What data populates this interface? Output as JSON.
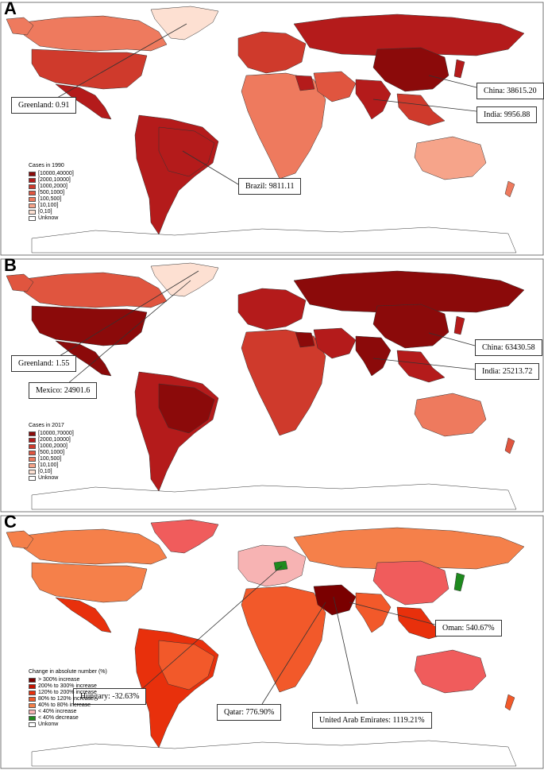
{
  "panels": [
    {
      "letter": "A",
      "legend": {
        "title": "Cases in 1990",
        "items": [
          {
            "label": "[10000,40000]",
            "color": "#8b0a0a"
          },
          {
            "label": "[2000,10000]",
            "color": "#b41b1b"
          },
          {
            "label": "[1000,2000]",
            "color": "#cf3a2c"
          },
          {
            "label": "[500,1000]",
            "color": "#e0553f"
          },
          {
            "label": "[100,500]",
            "color": "#ee7a5e"
          },
          {
            "label": "[10,100]",
            "color": "#f6a48a"
          },
          {
            "label": "[0,10]",
            "color": "#fde0d2"
          },
          {
            "label": "Unknow",
            "color": "#ffffff"
          }
        ]
      },
      "callouts": {
        "greenland": "Greenland: 0.91",
        "china": "China: 38615.20",
        "india": "India: 9956.88",
        "brazil": "Brazil: 9811.11"
      }
    },
    {
      "letter": "B",
      "legend": {
        "title": "Cases in 2017",
        "items": [
          {
            "label": "[10000,70000]",
            "color": "#8b0a0a"
          },
          {
            "label": "[2000,10000]",
            "color": "#b41b1b"
          },
          {
            "label": "[1000,2000]",
            "color": "#cf3a2c"
          },
          {
            "label": "[500,1000]",
            "color": "#e0553f"
          },
          {
            "label": "[100,500]",
            "color": "#ee7a5e"
          },
          {
            "label": "[10,100]",
            "color": "#f6a48a"
          },
          {
            "label": "[0,10]",
            "color": "#fde0d2"
          },
          {
            "label": "Unknow",
            "color": "#ffffff"
          }
        ]
      },
      "callouts": {
        "greenland": "Greenland: 1.55",
        "mexico": "Mexico: 24901.6",
        "china": "China: 63430.58",
        "india": "India: 25213.72"
      }
    },
    {
      "letter": "C",
      "legend": {
        "title": "Change in absolute number (%)",
        "items": [
          {
            "label": "> 300% increase",
            "color": "#7a0000"
          },
          {
            "label": "200% to 300% increase",
            "color": "#c41200"
          },
          {
            "label": "120% to 200% increase",
            "color": "#e8300c"
          },
          {
            "label": "80% to 120% increase",
            "color": "#f2592a"
          },
          {
            "label": "40% to 80% increase",
            "color": "#f5804a"
          },
          {
            "label": "< 40% increase",
            "color": "#f7b3b3"
          },
          {
            "label": "< 40% decrease",
            "color": "#1e8a1e"
          },
          {
            "label": "Unkonw",
            "color": "#ffffff"
          }
        ]
      },
      "callouts": {
        "oman": "Oman: 540.67%",
        "hungary": "Hungary: -32.63%",
        "qatar": "Qatar: 776.90%",
        "uae": "United Arab Emirates: 1119.21%"
      }
    }
  ]
}
